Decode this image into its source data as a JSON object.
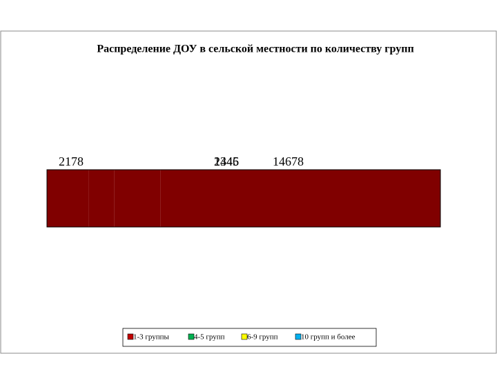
{
  "chart_data": {
    "type": "pie",
    "title": "Распределение ДОУ в сельской местности по количеству групп",
    "categories": [
      "1-3 группы",
      "4-5 групп",
      "6-9 групп",
      "10 групп и более"
    ],
    "values": [
      2178,
      1345,
      2446,
      14678
    ],
    "colors": [
      "#c00000",
      "#00b050",
      "#ffff00",
      "#00b0f0"
    ],
    "side_color": "#800000"
  }
}
